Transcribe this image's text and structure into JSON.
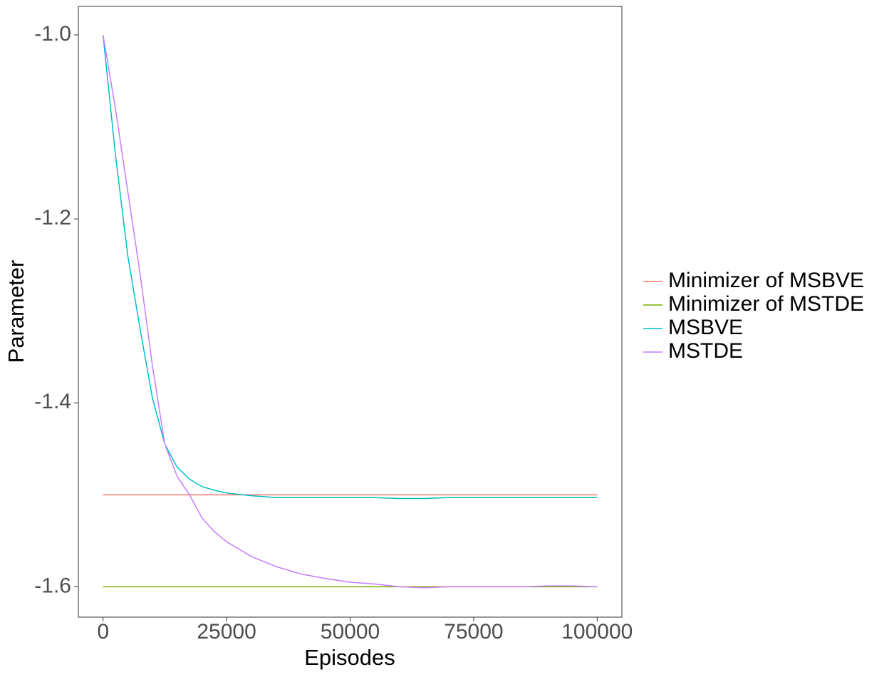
{
  "chart_data": {
    "type": "line",
    "x_label": "Episodes",
    "y_label": "Parameter",
    "x": [
      0,
      2500,
      5000,
      7500,
      10000,
      12500,
      15000,
      17500,
      20000,
      22500,
      25000,
      30000,
      35000,
      40000,
      45000,
      50000,
      55000,
      60000,
      65000,
      70000,
      75000,
      80000,
      85000,
      90000,
      95000,
      100000
    ],
    "series": [
      {
        "name": "Minimizer of MSBVE",
        "color": "#F8766D",
        "values": [
          -1.5,
          -1.5,
          -1.5,
          -1.5,
          -1.5,
          -1.5,
          -1.5,
          -1.5,
          -1.5,
          -1.5,
          -1.5,
          -1.5,
          -1.5,
          -1.5,
          -1.5,
          -1.5,
          -1.5,
          -1.5,
          -1.5,
          -1.5,
          -1.5,
          -1.5,
          -1.5,
          -1.5,
          -1.5,
          -1.5
        ]
      },
      {
        "name": "Minimizer of MSTDE",
        "color": "#7CAE00",
        "values": [
          -1.6,
          -1.6,
          -1.6,
          -1.6,
          -1.6,
          -1.6,
          -1.6,
          -1.6,
          -1.6,
          -1.6,
          -1.6,
          -1.6,
          -1.6,
          -1.6,
          -1.6,
          -1.6,
          -1.6,
          -1.6,
          -1.6,
          -1.6,
          -1.6,
          -1.6,
          -1.6,
          -1.6,
          -1.6,
          -1.6
        ]
      },
      {
        "name": "MSBVE",
        "color": "#00BFC4",
        "values": [
          -1.0,
          -1.13,
          -1.24,
          -1.32,
          -1.395,
          -1.445,
          -1.47,
          -1.483,
          -1.491,
          -1.495,
          -1.498,
          -1.501,
          -1.503,
          -1.503,
          -1.503,
          -1.503,
          -1.503,
          -1.504,
          -1.504,
          -1.503,
          -1.503,
          -1.503,
          -1.503,
          -1.503,
          -1.503,
          -1.503
        ]
      },
      {
        "name": "MSTDE",
        "color": "#C77CFF",
        "values": [
          -1.0,
          -1.08,
          -1.17,
          -1.26,
          -1.36,
          -1.445,
          -1.48,
          -1.5,
          -1.525,
          -1.54,
          -1.551,
          -1.567,
          -1.578,
          -1.586,
          -1.591,
          -1.595,
          -1.597,
          -1.6,
          -1.601,
          -1.6,
          -1.6,
          -1.6,
          -1.6,
          -1.599,
          -1.599,
          -1.6
        ]
      }
    ],
    "xlim": [
      -5000,
      105000
    ],
    "xticks": [
      0,
      25000,
      50000,
      75000,
      100000
    ],
    "ylim": [
      -1.633,
      -0.969
    ],
    "yticks": [
      {
        "value": -1.0,
        "label": "-1.0"
      },
      -1.2,
      -1.4,
      -1.6
    ],
    "grid": false,
    "legend": "right"
  }
}
